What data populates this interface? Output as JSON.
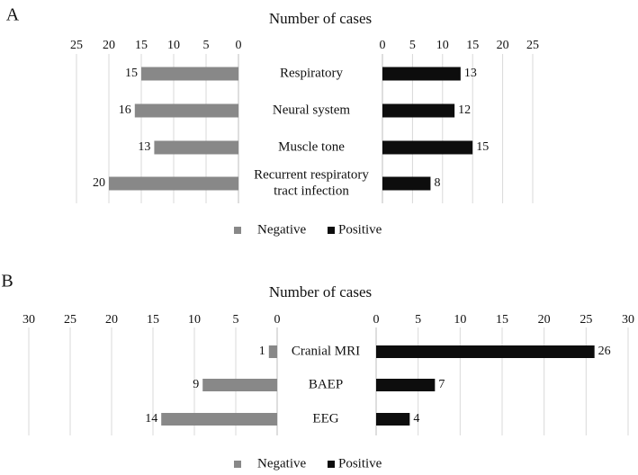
{
  "chart_data": [
    {
      "type": "bar",
      "panel_label": "A",
      "title": "Number of cases",
      "categories": [
        "Respiratory",
        "Neural system",
        "Muscle tone",
        "Recurrent respiratory tract infection"
      ],
      "category_lines": [
        [
          "Respiratory"
        ],
        [
          "Neural system"
        ],
        [
          "Muscle tone"
        ],
        [
          "Recurrent respiratory",
          "tract infection"
        ]
      ],
      "series": [
        {
          "name": "Negative",
          "values": [
            15,
            16,
            13,
            20
          ],
          "color": "#888888"
        },
        {
          "name": "Positive",
          "values": [
            13,
            12,
            15,
            8
          ],
          "color": "#0d0d0d"
        }
      ],
      "xlim": [
        0,
        25
      ],
      "ticks": [
        0,
        5,
        10,
        15,
        20,
        25
      ],
      "tick_labels": [
        "0",
        "5",
        "10",
        "15",
        "20",
        "25"
      ],
      "legend": [
        "Negative",
        "Positive"
      ],
      "grid": true
    },
    {
      "type": "bar",
      "panel_label": "B",
      "title": "Number of cases",
      "categories": [
        "Cranial MRI",
        "BAEP",
        "EEG"
      ],
      "category_lines": [
        [
          "Cranial MRI"
        ],
        [
          "BAEP"
        ],
        [
          "EEG"
        ]
      ],
      "series": [
        {
          "name": "Negative",
          "values": [
            1,
            9,
            14
          ],
          "color": "#888888"
        },
        {
          "name": "Positive",
          "values": [
            26,
            7,
            4
          ],
          "color": "#0d0d0d"
        }
      ],
      "xlim": [
        0,
        30
      ],
      "ticks": [
        0,
        5,
        10,
        15,
        20,
        25,
        30
      ],
      "tick_labels": [
        "0",
        "5",
        "10",
        "15",
        "20",
        "25",
        "30"
      ],
      "legend": [
        "Negative",
        "Positive"
      ],
      "grid": true
    }
  ]
}
